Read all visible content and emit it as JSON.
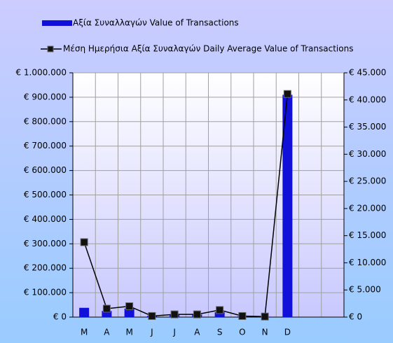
{
  "chart_data": {
    "type": "bar-line",
    "categories": [
      "M",
      "A",
      "M",
      "J",
      "J",
      "A",
      "S",
      "O",
      "N",
      "D",
      null,
      null
    ],
    "series": [
      {
        "name": "Αξία Συναλλαγών Value of Transactions",
        "type": "bar",
        "color": "#1010d8",
        "values": [
          38000,
          25000,
          35000,
          5000,
          10000,
          10000,
          20000,
          3000,
          2000,
          910000,
          null,
          null
        ]
      },
      {
        "name": "Μέση Ημερήσια Αξία Συναλαγών Daily Average Value of Transactions",
        "type": "line",
        "axis": "y2",
        "color": "#000000",
        "values": [
          13800,
          1550,
          2000,
          200,
          500,
          500,
          1300,
          200,
          100,
          41100,
          null,
          null
        ]
      }
    ],
    "ylim": [
      0,
      1000000
    ],
    "yticks": [
      {
        "value": 0,
        "label": "€ 0"
      },
      {
        "value": 100000,
        "label": "€ 100.000"
      },
      {
        "value": 200000,
        "label": "€ 200.000"
      },
      {
        "value": 300000,
        "label": "€ 300.000"
      },
      {
        "value": 400000,
        "label": "€ 400.000"
      },
      {
        "value": 500000,
        "label": "€ 500.000"
      },
      {
        "value": 600000,
        "label": "€ 600.000"
      },
      {
        "value": 700000,
        "label": "€ 700.000"
      },
      {
        "value": 800000,
        "label": "€ 800.000"
      },
      {
        "value": 900000,
        "label": "€ 900.000"
      },
      {
        "value": 1000000,
        "label": "€ 1.000.000"
      }
    ],
    "y2lim": [
      0,
      45000
    ],
    "y2ticks": [
      {
        "value": 0,
        "label": "€ 0"
      },
      {
        "value": 5000,
        "label": "€ 5.000"
      },
      {
        "value": 10000,
        "label": "€ 10.000"
      },
      {
        "value": 15000,
        "label": "€ 15.000"
      },
      {
        "value": 20000,
        "label": "€ 20.000"
      },
      {
        "value": 25000,
        "label": "€ 25.000"
      },
      {
        "value": 30000,
        "label": "€ 30.000"
      },
      {
        "value": 35000,
        "label": "€ 35.000"
      },
      {
        "value": 40000,
        "label": "€ 40.000"
      },
      {
        "value": 45000,
        "label": "€ 45.000"
      }
    ],
    "grid": true,
    "legend": "top"
  }
}
